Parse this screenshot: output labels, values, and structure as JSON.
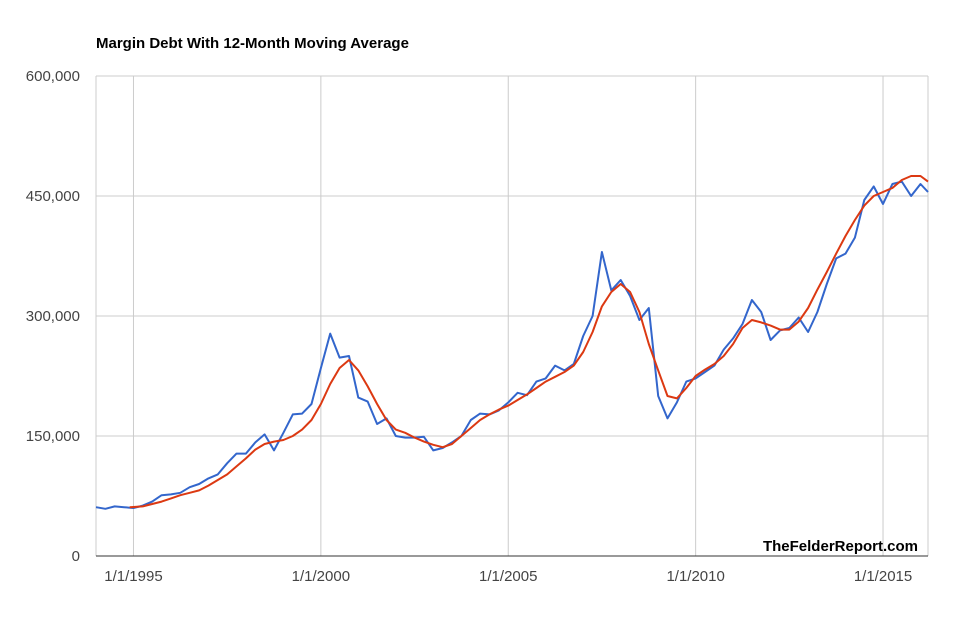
{
  "chart_data": {
    "type": "line",
    "title": "Margin Debt With 12-Month Moving Average",
    "xlabel": "",
    "ylabel": "",
    "ylim": [
      0,
      600000
    ],
    "xlim": [
      1994.0,
      2016.2
    ],
    "y_ticks": [
      0,
      150000,
      300000,
      450000,
      600000
    ],
    "y_tick_labels": [
      "0",
      "150,000",
      "300,000",
      "450,000",
      "600,000"
    ],
    "x_ticks": [
      1995,
      2000,
      2005,
      2010,
      2015
    ],
    "x_tick_labels": [
      "1/1/1995",
      "1/1/2000",
      "1/1/2005",
      "1/1/2010",
      "1/1/2015"
    ],
    "grid": true,
    "watermark": "TheFelderReport.com",
    "colors": {
      "series_1": "#3366cc",
      "series_2": "#dc3912",
      "grid": "#cccccc"
    },
    "series": [
      {
        "name": "Margin Debt",
        "x": [
          1994.0,
          1994.25,
          1994.5,
          1994.75,
          1995.0,
          1995.25,
          1995.5,
          1995.75,
          1996.0,
          1996.25,
          1996.5,
          1996.75,
          1997.0,
          1997.25,
          1997.5,
          1997.75,
          1998.0,
          1998.25,
          1998.5,
          1998.75,
          1999.0,
          1999.25,
          1999.5,
          1999.75,
          2000.0,
          2000.25,
          2000.5,
          2000.75,
          2001.0,
          2001.25,
          2001.5,
          2001.75,
          2002.0,
          2002.25,
          2002.5,
          2002.75,
          2003.0,
          2003.25,
          2003.5,
          2003.75,
          2004.0,
          2004.25,
          2004.5,
          2004.75,
          2005.0,
          2005.25,
          2005.5,
          2005.75,
          2006.0,
          2006.25,
          2006.5,
          2006.75,
          2007.0,
          2007.25,
          2007.5,
          2007.75,
          2008.0,
          2008.25,
          2008.5,
          2008.75,
          2009.0,
          2009.25,
          2009.5,
          2009.75,
          2010.0,
          2010.25,
          2010.5,
          2010.75,
          2011.0,
          2011.25,
          2011.5,
          2011.75,
          2012.0,
          2012.25,
          2012.5,
          2012.75,
          2013.0,
          2013.25,
          2013.5,
          2013.75,
          2014.0,
          2014.25,
          2014.5,
          2014.75,
          2015.0,
          2015.25,
          2015.5,
          2015.75,
          2016.0,
          2016.2
        ],
        "values": [
          61000,
          59000,
          62000,
          61000,
          60000,
          63000,
          68000,
          76000,
          77000,
          79000,
          86000,
          90000,
          97000,
          102000,
          116000,
          128000,
          128000,
          142000,
          152000,
          132000,
          154000,
          177000,
          178000,
          190000,
          235000,
          278000,
          248000,
          250000,
          198000,
          193000,
          165000,
          172000,
          150000,
          148000,
          148000,
          149000,
          132000,
          135000,
          142000,
          150000,
          170000,
          178000,
          177000,
          182000,
          192000,
          204000,
          201000,
          218000,
          222000,
          238000,
          232000,
          240000,
          275000,
          300000,
          380000,
          332000,
          345000,
          325000,
          295000,
          310000,
          200000,
          172000,
          192000,
          218000,
          222000,
          230000,
          238000,
          258000,
          272000,
          290000,
          320000,
          305000,
          270000,
          282000,
          285000,
          298000,
          280000,
          305000,
          340000,
          372000,
          378000,
          398000,
          445000,
          462000,
          440000,
          465000,
          468000,
          450000,
          465000,
          455000
        ]
      },
      {
        "name": "12-Month Moving Average",
        "x": [
          1994.9,
          1995.25,
          1995.5,
          1995.75,
          1996.0,
          1996.25,
          1996.5,
          1996.75,
          1997.0,
          1997.25,
          1997.5,
          1997.75,
          1998.0,
          1998.25,
          1998.5,
          1998.75,
          1999.0,
          1999.25,
          1999.5,
          1999.75,
          2000.0,
          2000.25,
          2000.5,
          2000.75,
          2001.0,
          2001.25,
          2001.5,
          2001.75,
          2002.0,
          2002.25,
          2002.5,
          2002.75,
          2003.0,
          2003.25,
          2003.5,
          2003.75,
          2004.0,
          2004.25,
          2004.5,
          2004.75,
          2005.0,
          2005.25,
          2005.5,
          2005.75,
          2006.0,
          2006.25,
          2006.5,
          2006.75,
          2007.0,
          2007.25,
          2007.5,
          2007.75,
          2008.0,
          2008.25,
          2008.5,
          2008.75,
          2009.0,
          2009.25,
          2009.5,
          2009.75,
          2010.0,
          2010.25,
          2010.5,
          2010.75,
          2011.0,
          2011.25,
          2011.5,
          2011.75,
          2012.0,
          2012.25,
          2012.5,
          2012.75,
          2013.0,
          2013.25,
          2013.5,
          2013.75,
          2014.0,
          2014.25,
          2014.5,
          2014.75,
          2015.0,
          2015.25,
          2015.5,
          2015.75,
          2016.0,
          2016.2
        ],
        "values": [
          61000,
          62000,
          65000,
          68000,
          72000,
          76000,
          79000,
          82000,
          88000,
          95000,
          102000,
          112000,
          122000,
          133000,
          140000,
          143000,
          145000,
          150000,
          158000,
          170000,
          190000,
          215000,
          235000,
          245000,
          232000,
          212000,
          190000,
          170000,
          158000,
          154000,
          148000,
          143000,
          139000,
          136000,
          140000,
          150000,
          160000,
          170000,
          177000,
          183000,
          188000,
          195000,
          202000,
          210000,
          218000,
          224000,
          230000,
          238000,
          255000,
          280000,
          312000,
          330000,
          340000,
          330000,
          305000,
          265000,
          232000,
          200000,
          197000,
          210000,
          225000,
          233000,
          240000,
          250000,
          265000,
          285000,
          295000,
          292000,
          288000,
          283000,
          283000,
          293000,
          310000,
          333000,
          355000,
          378000,
          400000,
          420000,
          438000,
          450000,
          455000,
          460000,
          470000,
          475000,
          475000,
          468000
        ]
      }
    ]
  }
}
